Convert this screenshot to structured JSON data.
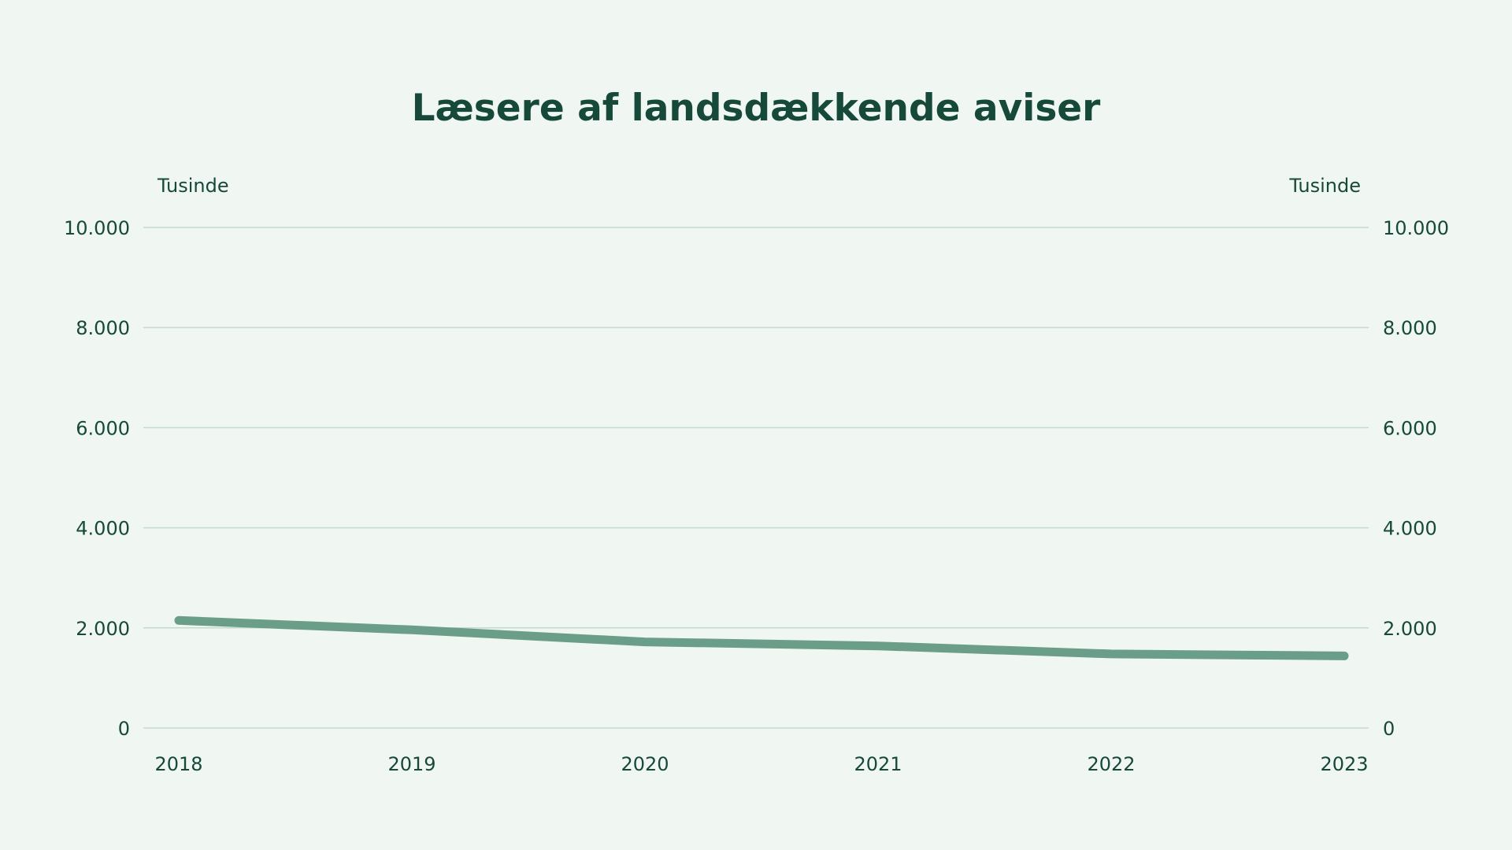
{
  "chart_data": {
    "type": "line",
    "title": "Læsere af landsdækkende aviser",
    "left_axis_unit": "Tusinde",
    "right_axis_unit": "Tusinde",
    "x": [
      "2018",
      "2019",
      "2020",
      "2021",
      "2022",
      "2023"
    ],
    "y_ticks": [
      "10.000",
      "8.000",
      "6.000",
      "4.000",
      "2.000",
      "0"
    ],
    "ylim": [
      0,
      10000
    ],
    "grid": true,
    "legend": "none",
    "series": [
      {
        "color": "#6b9e89",
        "values": [
          2150,
          1960,
          1720,
          1640,
          1480,
          1440
        ]
      }
    ]
  }
}
